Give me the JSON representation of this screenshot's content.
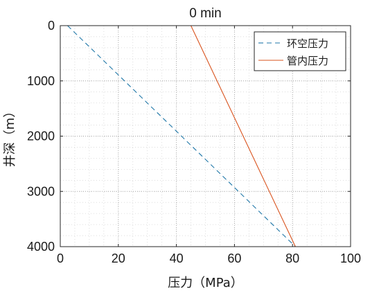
{
  "chart_data": {
    "type": "line",
    "title": "0 min",
    "xlabel": "压力（MPa）",
    "ylabel": "井深（m）",
    "xlim": [
      0,
      100
    ],
    "ylim": [
      0,
      4000
    ],
    "y_reversed": true,
    "xticks": [
      0,
      20,
      40,
      60,
      80,
      100
    ],
    "yticks": [
      0,
      1000,
      2000,
      3000,
      4000
    ],
    "grid": "on (dotted, with minor grid)",
    "legend_location": "top-right",
    "series": [
      {
        "name": "环空压力",
        "style": "dashed",
        "color": "#1f77a8",
        "points": [
          {
            "x": 2.5,
            "y": 0
          },
          {
            "x": 81,
            "y": 4000
          }
        ]
      },
      {
        "name": "管内压力",
        "style": "solid",
        "color": "#d9531e",
        "points": [
          {
            "x": 45,
            "y": 0
          },
          {
            "x": 81,
            "y": 4000
          }
        ]
      }
    ]
  }
}
